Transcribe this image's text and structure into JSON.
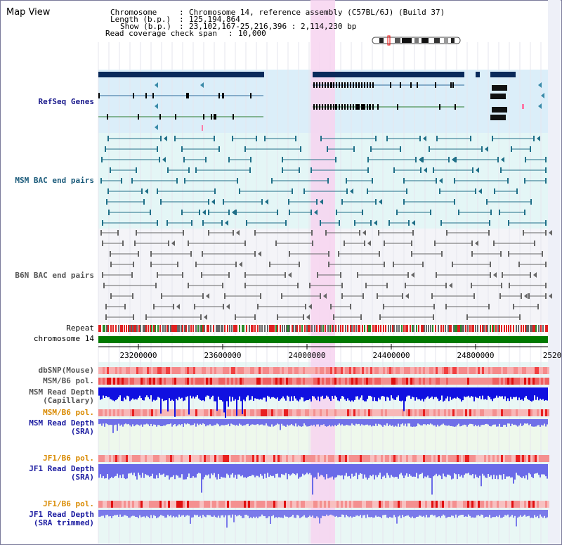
{
  "header": {
    "title": "Map View",
    "chromosome_key": "Chromosome",
    "chromosome_val": "Chromosome 14, reference assembly (C57BL/6J) (Build 37)",
    "length_key": "Length (b.p.)",
    "length_val": "125,194,864",
    "show_key": "Show (b.p.)",
    "show_val": "23,102,167-25,216,396 : 2,114,230 bp",
    "coverage_key": "Read coverage check span",
    "coverage_val": "10,000"
  },
  "tracks": {
    "refseq": "RefSeq Genes",
    "msm_bac": "MSM BAC end pairs",
    "b6n_bac": "B6N BAC end pairs",
    "repeat": "Repeat",
    "chrom": "chromosome 14",
    "dbsnp": "dbSNP(Mouse)",
    "msm_b6_pol": "MSM/B6 pol.",
    "msm_depth_cap_1": "MSM Read Depth",
    "msm_depth_cap_2": "(Capillary)",
    "msm_b6_pol_sra": "MSM/B6 pol.",
    "msm_depth_sra_1": "MSM Read Depth",
    "msm_depth_sra_2": "(SRA)",
    "jf1_pol": "JF1/B6 pol.",
    "jf1_depth_1": "JF1 Read Depth",
    "jf1_depth_2": "(SRA)",
    "jf1_pol_trim": "JF1/B6 pol.",
    "jf1_trim_1": "JF1 Read Depth",
    "jf1_trim_2": "(SRA trimmed)"
  },
  "axis": {
    "ticks": [
      "23200000",
      "23600000",
      "24000000",
      "24400000",
      "24800000",
      "2520"
    ]
  },
  "colors": {
    "refseq_label": "#1a1a8c",
    "msm_label": "#1a5a7a",
    "b6n_label": "#555555",
    "pol_label_orange": "#d98a00",
    "depth_label": "#1a1aa0",
    "highlight": "#f7d4f0",
    "chrom_bar": "#007a00"
  }
}
